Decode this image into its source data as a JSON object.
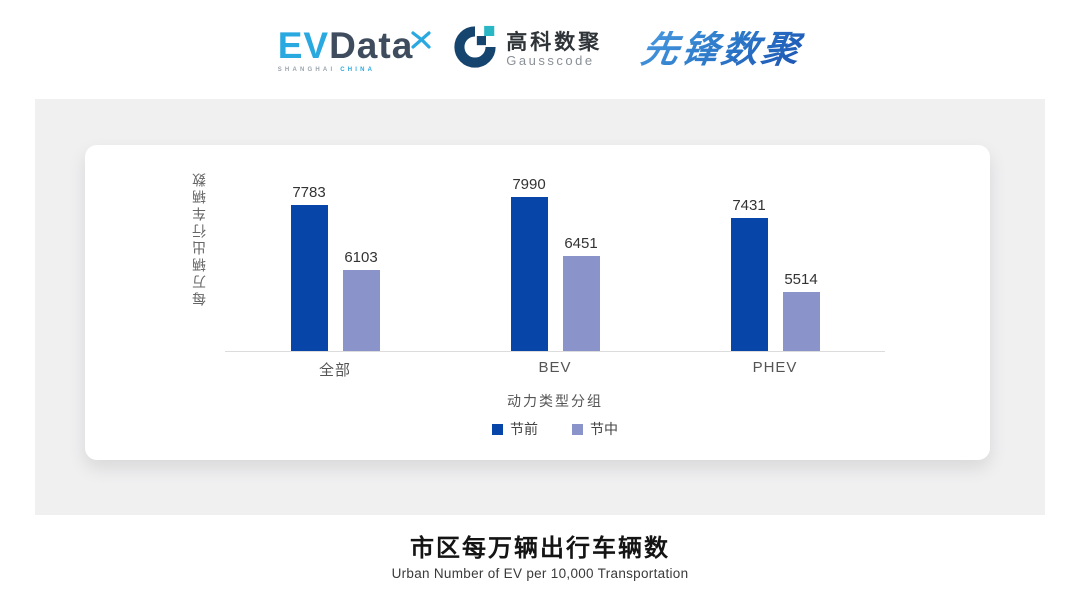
{
  "header": {
    "evdata": {
      "ev": "EV",
      "word": "Data",
      "sub_left": "SHANGHAI",
      "sub_right": "CHINA"
    },
    "gausscode": {
      "cn": "高科数聚",
      "en": "Gausscode"
    },
    "pioneer": {
      "text": "先锋数聚"
    }
  },
  "chart_data": {
    "type": "bar",
    "categories": [
      "全部",
      "BEV",
      "PHEV"
    ],
    "series": [
      {
        "name": "节前",
        "color": "#0745a8",
        "values": [
          7783,
          7990,
          7431
        ]
      },
      {
        "name": "节中",
        "color": "#8b93cb",
        "values": [
          6103,
          6451,
          5514
        ]
      }
    ],
    "title": "",
    "xlabel": "动力类型分组",
    "ylabel": "每万辆出行车辆数",
    "ylim": [
      4000,
      8600
    ],
    "grid": false,
    "legend_position": "bottom",
    "value_labels": true
  },
  "footer": {
    "title": "市区每万辆出行车辆数",
    "subtitle": "Urban Number of EV per 10,000 Transportation"
  },
  "colors": {
    "series_pre_holiday": "#0745a8",
    "series_mid_holiday": "#8b93cb",
    "panel_bg": "#f0f0f1",
    "evdata_blue": "#29a9e0",
    "evdata_dark": "#3e4c5e",
    "gauss_navy": "#15456e",
    "gauss_teal": "#29b6c5",
    "pioneer_blue": "#2e7ccb",
    "axis_line": "#dcdcdc"
  }
}
